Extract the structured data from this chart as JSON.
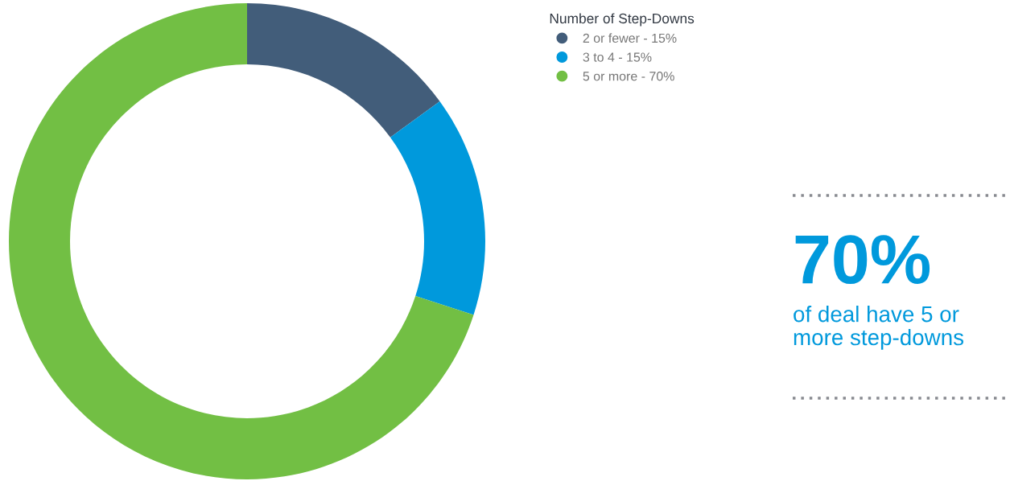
{
  "chart_data": {
    "type": "donut",
    "legend_title": "Number of Step-Downs",
    "categories": [
      "2 or fewer - 15%",
      "3 to 4 - 15%",
      "5 or more - 70%"
    ],
    "values": [
      15,
      15,
      70
    ],
    "colors": [
      "#425d7a",
      "#0099dc",
      "#72bf44"
    ],
    "legend": "right",
    "annotations": [
      "70%",
      "of deal have 5 or more step-downs"
    ]
  }
}
